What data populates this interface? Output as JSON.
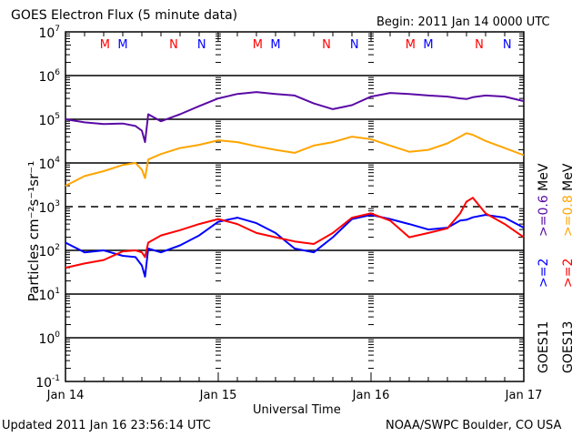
{
  "header": {
    "title": "GOES Electron Flux (5 minute data)",
    "begin": "Begin: 2011 Jan 14 0000 UTC"
  },
  "footer": {
    "updated": "Updated 2011 Jan 16 23:56:14 UTC",
    "credit": "NOAA/SWPC Boulder, CO USA"
  },
  "chart_data": {
    "type": "line",
    "title": "GOES Electron Flux (5 minute data)",
    "xlabel": "Universal Time",
    "ylabel": "Particles cm⁻²s⁻¹sr⁻¹",
    "yscale": "log",
    "ylim": [
      0.1,
      10000000
    ],
    "xlim_hours": [
      0,
      72
    ],
    "x_tick_labels": [
      {
        "hour": 0,
        "label": "Jan 14"
      },
      {
        "hour": 24,
        "label": "Jan 15"
      },
      {
        "hour": 48,
        "label": "Jan 16"
      },
      {
        "hour": 72,
        "label": "Jan 17"
      }
    ],
    "y_tick_labels": [
      {
        "exp": 7,
        "label": "10",
        "sup": "7"
      },
      {
        "exp": 6,
        "label": "10",
        "sup": "6"
      },
      {
        "exp": 5,
        "label": "10",
        "sup": "5"
      },
      {
        "exp": 4,
        "label": "10",
        "sup": "4"
      },
      {
        "exp": 3,
        "label": "10",
        "sup": "3"
      },
      {
        "exp": 2,
        "label": "10",
        "sup": "2"
      },
      {
        "exp": 1,
        "label": "10",
        "sup": "1"
      },
      {
        "exp": 0,
        "label": "10",
        "sup": "0"
      },
      {
        "exp": -1,
        "label": "10",
        "sup": "-1"
      }
    ],
    "grid_solid_exps": [
      6,
      5,
      4,
      2,
      1,
      0
    ],
    "threshold_dashed_exp": 3,
    "x_hours": [
      0,
      3,
      6,
      9,
      11,
      12,
      12.5,
      13,
      15,
      18,
      21,
      24,
      27,
      30,
      33,
      36,
      39,
      42,
      45,
      48,
      51,
      54,
      57,
      60,
      62,
      63,
      64,
      66,
      69,
      72
    ],
    "series": [
      {
        "name": "GOES11 >=0.6 MeV",
        "color": "#5a0aa5",
        "values": [
          100000,
          85000,
          78000,
          80000,
          70000,
          55000,
          30000,
          130000,
          90000,
          130000,
          200000,
          300000,
          380000,
          420000,
          380000,
          350000,
          230000,
          170000,
          210000,
          330000,
          400000,
          380000,
          350000,
          330000,
          300000,
          290000,
          320000,
          350000,
          330000,
          260000
        ]
      },
      {
        "name": "GOES13 >=0.8 MeV",
        "color": "#ffa500",
        "values": [
          3000,
          5000,
          6500,
          9000,
          10000,
          7000,
          4500,
          12000,
          16000,
          22000,
          26000,
          33000,
          30000,
          24000,
          20000,
          17000,
          25000,
          30000,
          40000,
          35000,
          25000,
          18000,
          20000,
          28000,
          40000,
          48000,
          44000,
          32000,
          22000,
          15000
        ]
      },
      {
        "name": "GOES11 >=2 MeV",
        "color": "#0000ff",
        "values": [
          150,
          90,
          100,
          75,
          70,
          45,
          25,
          110,
          90,
          130,
          220,
          450,
          560,
          420,
          250,
          110,
          90,
          200,
          520,
          650,
          520,
          400,
          300,
          330,
          480,
          500,
          570,
          650,
          560,
          330
        ]
      },
      {
        "name": "GOES13 >=2 MeV",
        "color": "#ff0000",
        "values": [
          40,
          50,
          60,
          95,
          100,
          90,
          70,
          150,
          220,
          290,
          400,
          520,
          400,
          250,
          200,
          160,
          140,
          250,
          560,
          700,
          480,
          200,
          250,
          320,
          700,
          1300,
          1600,
          700,
          400,
          200
        ]
      }
    ],
    "legend": [
      {
        "sat": "GOES11",
        "line1": ">=0.6 MeV",
        "line2": ">=2",
        "c1": "#5a0aa5",
        "c2": "#0000ff"
      },
      {
        "sat": "GOES13",
        "line1": ">=0.8 MeV",
        "line2": ">=2",
        "c1": "#ffa500",
        "c2": "#ff0000"
      }
    ],
    "legend_placement": "right",
    "annotations": [
      {
        "text": "M",
        "hour": 6.2,
        "color": "#ff0000"
      },
      {
        "text": "M",
        "hour": 9.0,
        "color": "#0000ff"
      },
      {
        "text": "N",
        "hour": 17.0,
        "color": "#ff0000"
      },
      {
        "text": "N",
        "hour": 21.4,
        "color": "#0000ff"
      },
      {
        "text": "M",
        "hour": 30.2,
        "color": "#ff0000"
      },
      {
        "text": "M",
        "hour": 33.0,
        "color": "#0000ff"
      },
      {
        "text": "N",
        "hour": 41.0,
        "color": "#ff0000"
      },
      {
        "text": "N",
        "hour": 45.4,
        "color": "#0000ff"
      },
      {
        "text": "M",
        "hour": 54.2,
        "color": "#ff0000"
      },
      {
        "text": "M",
        "hour": 57.0,
        "color": "#0000ff"
      },
      {
        "text": "N",
        "hour": 65.0,
        "color": "#ff0000"
      },
      {
        "text": "N",
        "hour": 69.4,
        "color": "#0000ff"
      }
    ]
  }
}
